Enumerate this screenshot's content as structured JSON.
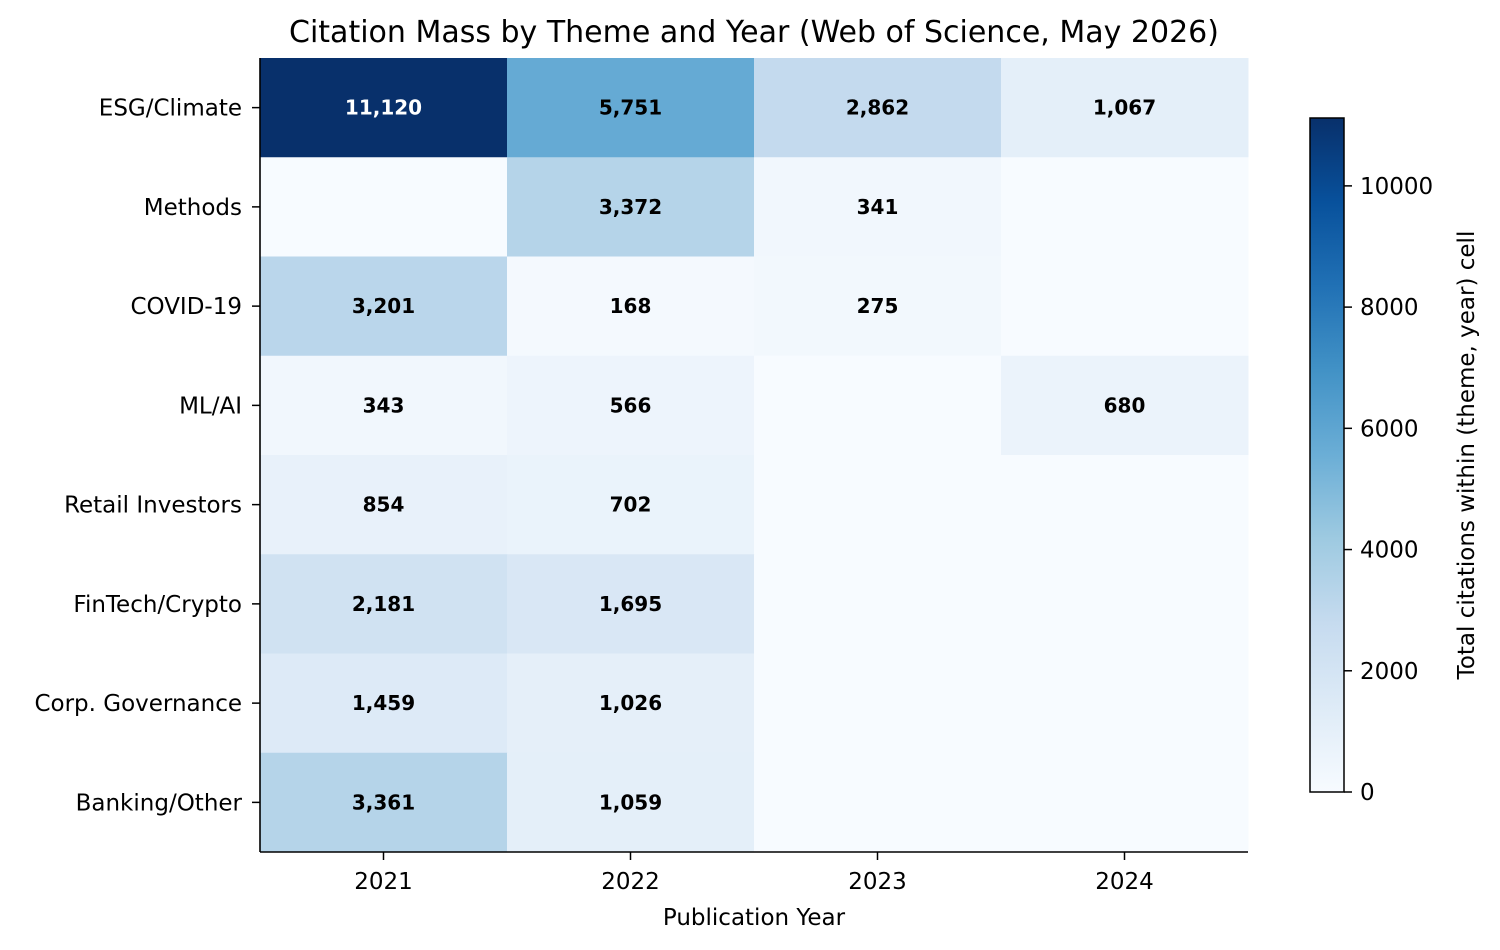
{
  "chart_data": {
    "type": "heatmap",
    "title": "Citation Mass by Theme and Year (Web of Science, May 2026)",
    "xlabel": "Publication Year",
    "ylabel": "",
    "x": [
      "2021",
      "2022",
      "2023",
      "2024"
    ],
    "y": [
      "ESG/Climate",
      "Methods",
      "COVID-19",
      "ML/AI",
      "Retail Investors",
      "FinTech/Crypto",
      "Corp. Governance",
      "Banking/Other"
    ],
    "values": [
      [
        11120,
        5751,
        2862,
        1067
      ],
      [
        0,
        3372,
        341,
        0
      ],
      [
        3201,
        168,
        275,
        0
      ],
      [
        343,
        566,
        0,
        680
      ],
      [
        854,
        702,
        0,
        0
      ],
      [
        2181,
        1695,
        0,
        0
      ],
      [
        1459,
        1026,
        0,
        0
      ],
      [
        3361,
        1059,
        0,
        0
      ]
    ],
    "colorbar": {
      "label": "Total citations within (theme, year) cell",
      "range": [
        0,
        11120
      ],
      "ticks": [
        0,
        2000,
        4000,
        6000,
        8000,
        10000
      ],
      "colormap": "Blues"
    },
    "annotations": "non-zero cells annotated with thousands-separated values"
  }
}
